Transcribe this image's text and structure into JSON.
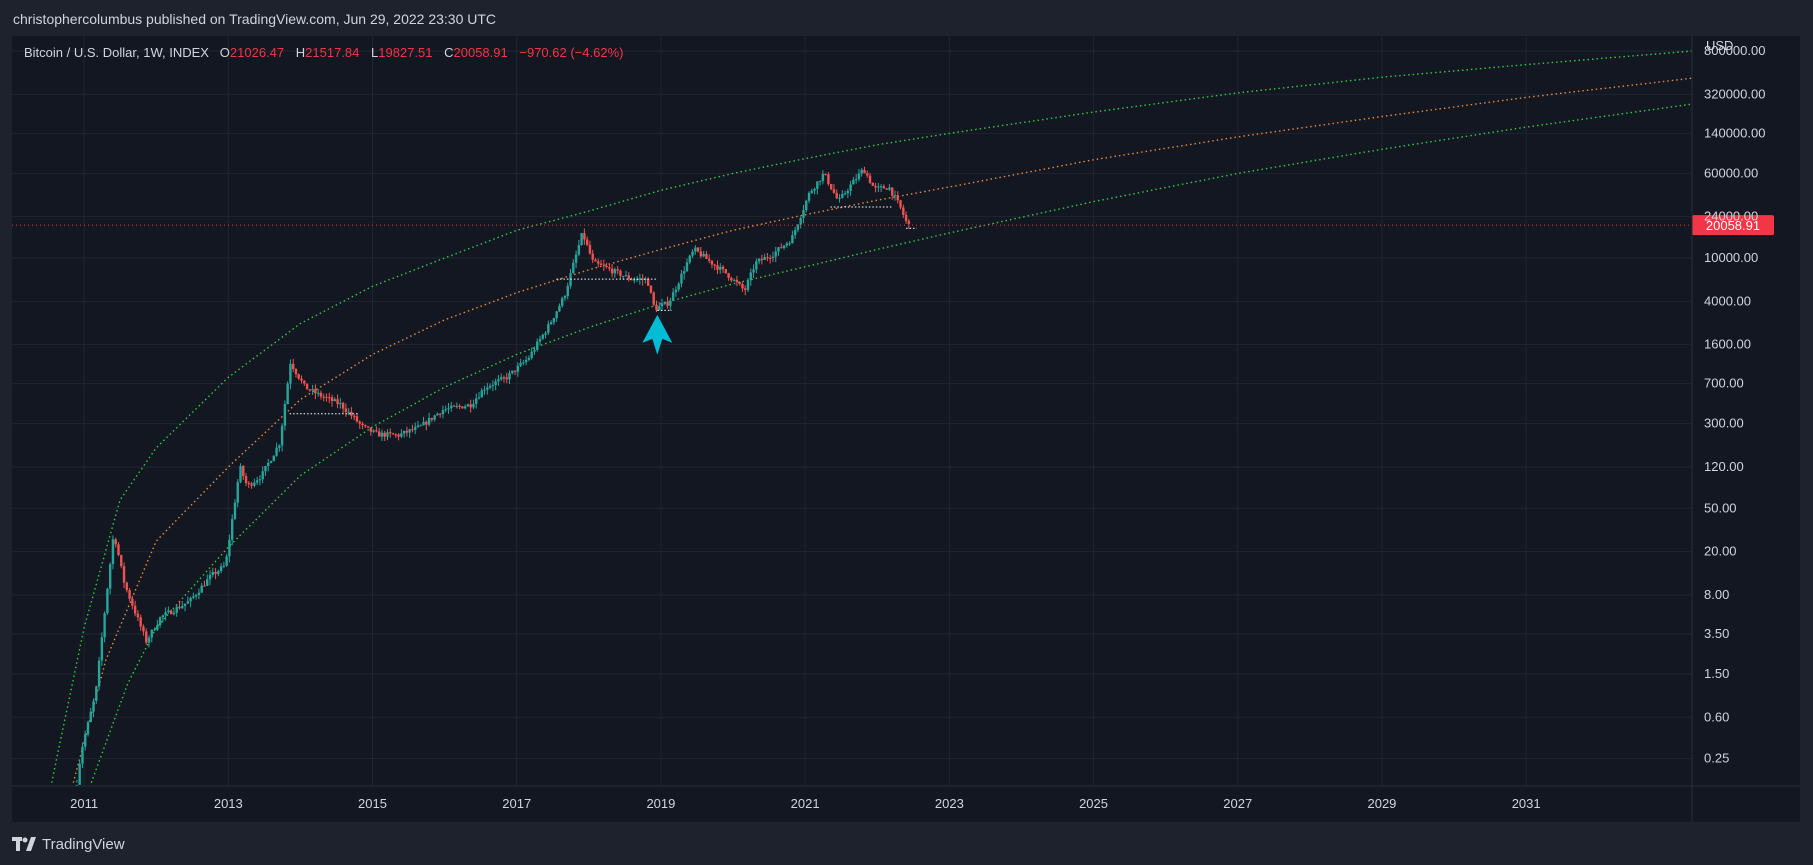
{
  "header": {
    "publisher_line": "christophercolumbus published on TradingView.com, Jun 29, 2022 23:30 UTC"
  },
  "legend": {
    "symbol": "Bitcoin / U.S. Dollar, 1W, INDEX",
    "open_label": "O",
    "open": "21026.47",
    "high_label": "H",
    "high": "21517.84",
    "low_label": "L",
    "low": "19827.51",
    "close_label": "C",
    "close": "20058.91",
    "change": "−970.62 (−4.62%)"
  },
  "footer": {
    "brand": "TradingView",
    "brand_icon": "tradingview-logo-icon"
  },
  "colors": {
    "background": "#131722",
    "frame": "#1e222d",
    "grid": "#1f2430",
    "up_candle": "#26a69a",
    "down_candle": "#ef5350",
    "band_green": "#2ecc40",
    "band_orange": "#e8893a",
    "price_line": "#f23645",
    "arrow": "#00bcd4"
  },
  "chart_data": {
    "type": "candlestick",
    "title": "Bitcoin / U.S. Dollar, 1W, INDEX",
    "y_scale": "log",
    "y_unit": "USD",
    "ylim": [
      0.14,
      1100000
    ],
    "xlim": [
      2010.0,
      2033.3
    ],
    "x_ticks": [
      "2011",
      "2013",
      "2015",
      "2017",
      "2019",
      "2021",
      "2023",
      "2025",
      "2027",
      "2029",
      "2031"
    ],
    "y_ticks": [
      "800000.00",
      "320000.00",
      "140000.00",
      "60000.00",
      "24000.00",
      "10000.00",
      "4000.00",
      "1600.00",
      "700.00",
      "300.00",
      "120.00",
      "50.00",
      "20.00",
      "8.00",
      "3.50",
      "1.50",
      "0.60",
      "0.25"
    ],
    "current_price": 20058.91,
    "current_price_label": "20058.91",
    "price_path": [
      [
        2010.9,
        0.1
      ],
      [
        2011.0,
        0.3
      ],
      [
        2011.2,
        1.0
      ],
      [
        2011.35,
        8
      ],
      [
        2011.45,
        30
      ],
      [
        2011.6,
        10
      ],
      [
        2011.9,
        3
      ],
      [
        2012.1,
        5
      ],
      [
        2012.5,
        7
      ],
      [
        2012.8,
        12
      ],
      [
        2013.0,
        15
      ],
      [
        2013.2,
        120
      ],
      [
        2013.3,
        80
      ],
      [
        2013.5,
        100
      ],
      [
        2013.75,
        200
      ],
      [
        2013.9,
        1100
      ],
      [
        2014.1,
        650
      ],
      [
        2014.3,
        550
      ],
      [
        2014.6,
        450
      ],
      [
        2014.9,
        280
      ],
      [
        2015.1,
        240
      ],
      [
        2015.4,
        235
      ],
      [
        2015.7,
        280
      ],
      [
        2016.0,
        400
      ],
      [
        2016.4,
        450
      ],
      [
        2016.6,
        650
      ],
      [
        2016.9,
        800
      ],
      [
        2017.2,
        1200
      ],
      [
        2017.5,
        2500
      ],
      [
        2017.7,
        4500
      ],
      [
        2017.95,
        17000
      ],
      [
        2018.1,
        9000
      ],
      [
        2018.3,
        8000
      ],
      [
        2018.6,
        6500
      ],
      [
        2018.85,
        6300
      ],
      [
        2018.95,
        3400
      ],
      [
        2019.15,
        3900
      ],
      [
        2019.4,
        9000
      ],
      [
        2019.5,
        12000
      ],
      [
        2019.7,
        9500
      ],
      [
        2019.95,
        7200
      ],
      [
        2020.2,
        5000
      ],
      [
        2020.35,
        9000
      ],
      [
        2020.6,
        11000
      ],
      [
        2020.85,
        15000
      ],
      [
        2021.1,
        40000
      ],
      [
        2021.3,
        60000
      ],
      [
        2021.5,
        33000
      ],
      [
        2021.65,
        45000
      ],
      [
        2021.85,
        66000
      ],
      [
        2022.0,
        43000
      ],
      [
        2022.2,
        45000
      ],
      [
        2022.35,
        30000
      ],
      [
        2022.46,
        20058
      ]
    ],
    "support_lines": [
      {
        "x": [
          2013.85,
          2014.8
        ],
        "y": 370
      },
      {
        "x": [
          2017.55,
          2018.95
        ],
        "y": 6400
      },
      {
        "x": [
          2018.95,
          2019.15
        ],
        "y": 3300
      },
      {
        "x": [
          2021.35,
          2022.2
        ],
        "y": 29500
      },
      {
        "x": [
          2022.4,
          2022.55
        ],
        "y": 18800
      }
    ],
    "bands": [
      {
        "role": "upper",
        "color": "#2ecc40",
        "points": [
          [
            2010.55,
            0.15
          ],
          [
            2011.0,
            4
          ],
          [
            2011.5,
            60
          ],
          [
            2012.0,
            180
          ],
          [
            2013.0,
            800
          ],
          [
            2014.0,
            2500
          ],
          [
            2015.0,
            5500
          ],
          [
            2016.0,
            10000
          ],
          [
            2017.0,
            18000
          ],
          [
            2018.0,
            27000
          ],
          [
            2019.0,
            42000
          ],
          [
            2020.0,
            60000
          ],
          [
            2021.0,
            82000
          ],
          [
            2022.0,
            110000
          ],
          [
            2023.0,
            140000
          ],
          [
            2025.0,
            220000
          ],
          [
            2027.0,
            330000
          ],
          [
            2029.0,
            460000
          ],
          [
            2031.0,
            600000
          ],
          [
            2033.3,
            800000
          ]
        ]
      },
      {
        "role": "middle",
        "color": "#e8893a",
        "points": [
          [
            2010.85,
            0.15
          ],
          [
            2011.3,
            2
          ],
          [
            2012.0,
            25
          ],
          [
            2013.0,
            120
          ],
          [
            2014.0,
            500
          ],
          [
            2015.0,
            1300
          ],
          [
            2016.0,
            2700
          ],
          [
            2017.0,
            4800
          ],
          [
            2018.0,
            7800
          ],
          [
            2019.0,
            12000
          ],
          [
            2020.0,
            18000
          ],
          [
            2021.0,
            25000
          ],
          [
            2022.0,
            34000
          ],
          [
            2023.0,
            45000
          ],
          [
            2025.0,
            80000
          ],
          [
            2027.0,
            130000
          ],
          [
            2029.0,
            200000
          ],
          [
            2031.0,
            300000
          ],
          [
            2033.3,
            450000
          ]
        ]
      },
      {
        "role": "lower",
        "color": "#2ecc40",
        "points": [
          [
            2011.1,
            0.15
          ],
          [
            2011.6,
            1.2
          ],
          [
            2012.0,
            4
          ],
          [
            2013.0,
            22
          ],
          [
            2014.0,
            100
          ],
          [
            2015.0,
            280
          ],
          [
            2016.0,
            650
          ],
          [
            2017.0,
            1300
          ],
          [
            2018.0,
            2300
          ],
          [
            2019.0,
            3800
          ],
          [
            2020.0,
            5800
          ],
          [
            2021.0,
            8300
          ],
          [
            2022.0,
            12000
          ],
          [
            2023.0,
            17000
          ],
          [
            2025.0,
            33000
          ],
          [
            2027.0,
            60000
          ],
          [
            2029.0,
            100000
          ],
          [
            2031.0,
            160000
          ],
          [
            2033.3,
            260000
          ]
        ]
      }
    ],
    "annotations": [
      {
        "type": "arrow",
        "x": 2018.95,
        "y": 1400,
        "direction": "up",
        "color": "#00bcd4"
      }
    ]
  }
}
